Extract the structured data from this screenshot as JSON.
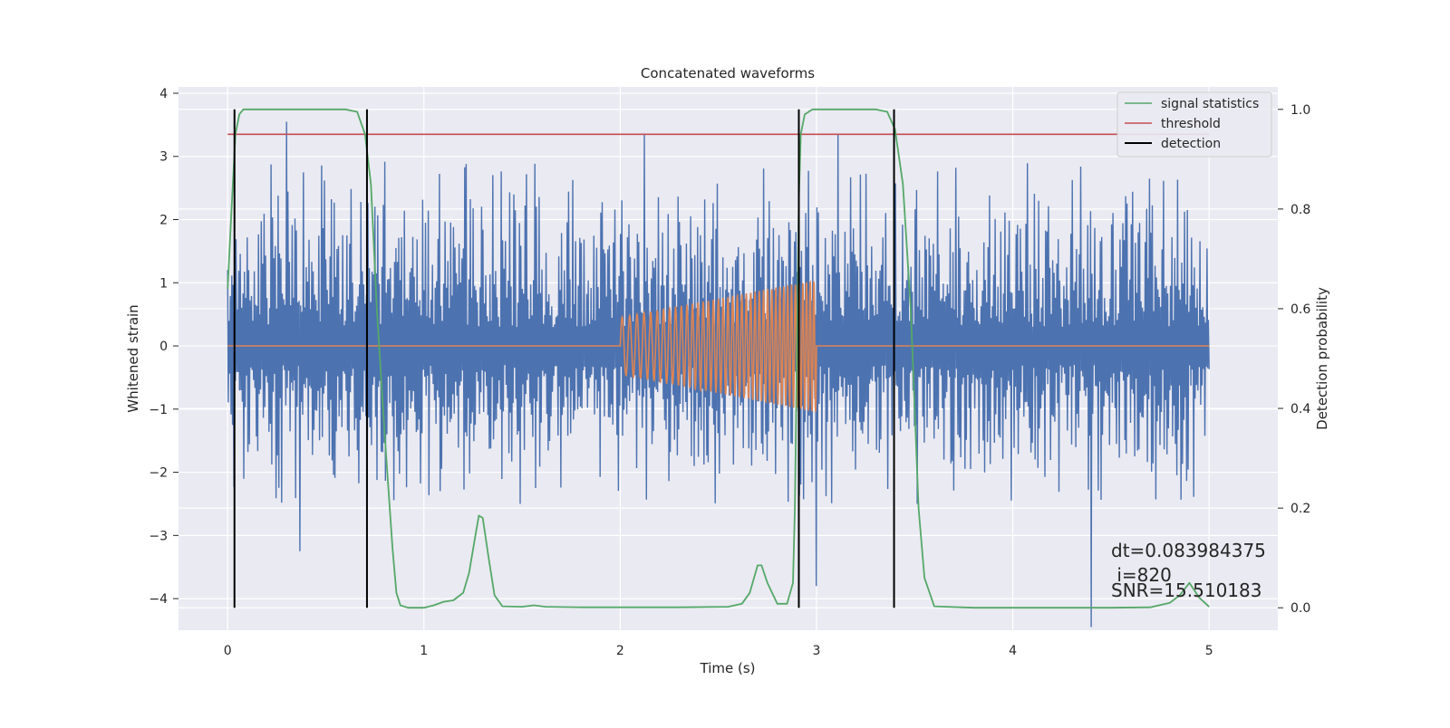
{
  "chart_data": {
    "type": "line",
    "title": "Concatenated waveforms",
    "xlabel": "Time (s)",
    "ylabel": "Whitened strain",
    "y2label": "Detection probability",
    "xlim": [
      -0.25,
      5.35
    ],
    "ylim": [
      -4.5,
      4.1
    ],
    "y2lim": [
      -0.045,
      1.045
    ],
    "xticks": [
      0,
      1,
      2,
      3,
      4,
      5
    ],
    "xtick_labels": [
      "0",
      "1",
      "2",
      "3",
      "4",
      "5"
    ],
    "yticks": [
      4,
      3,
      2,
      1,
      0,
      -1,
      -2,
      -3,
      -4
    ],
    "ytick_labels": [
      "4",
      "3",
      "2",
      "1",
      "0",
      "−1",
      "−2",
      "−3",
      "−4"
    ],
    "y2ticks": [
      1.0,
      0.8,
      0.6,
      0.4,
      0.2,
      0.0
    ],
    "y2tick_labels": [
      "1.0",
      "0.8",
      "0.6",
      "0.4",
      "0.2",
      "0.0"
    ],
    "grid": true,
    "legend_position": "top-right",
    "colors": {
      "strain": "#4c72b0",
      "template": "#dd8452",
      "signal": "#55a868",
      "threshold": "#c44e52",
      "detection": "#000000",
      "axes_bg": "#eaeaf2",
      "grid": "#ffffff"
    },
    "series": [
      {
        "name": "signal statistics",
        "axis": "right",
        "color": "#55a868",
        "x": [
          0.0,
          0.02,
          0.04,
          0.06,
          0.08,
          0.1,
          0.2,
          0.4,
          0.6,
          0.66,
          0.7,
          0.73,
          0.76,
          0.8,
          0.84,
          0.86,
          0.88,
          0.92,
          1.0,
          1.05,
          1.1,
          1.15,
          1.2,
          1.23,
          1.26,
          1.28,
          1.3,
          1.33,
          1.36,
          1.4,
          1.5,
          1.56,
          1.62,
          1.8,
          2.0,
          2.3,
          2.55,
          2.62,
          2.66,
          2.7,
          2.72,
          2.75,
          2.8,
          2.85,
          2.88,
          2.89,
          2.9,
          2.91,
          2.92,
          2.94,
          2.98,
          3.1,
          3.3,
          3.36,
          3.4,
          3.44,
          3.48,
          3.5,
          3.52,
          3.55,
          3.6,
          3.8,
          4.0,
          4.5,
          4.7,
          4.8,
          4.85,
          4.9,
          4.95,
          5.0
        ],
        "y": [
          0.64,
          0.8,
          0.95,
          0.99,
          1.0,
          1.0,
          1.0,
          1.0,
          1.0,
          0.995,
          0.95,
          0.85,
          0.6,
          0.35,
          0.12,
          0.03,
          0.005,
          0.0,
          0.0,
          0.005,
          0.012,
          0.015,
          0.03,
          0.07,
          0.14,
          0.185,
          0.18,
          0.1,
          0.025,
          0.003,
          0.002,
          0.005,
          0.002,
          0.001,
          0.001,
          0.001,
          0.002,
          0.008,
          0.03,
          0.085,
          0.085,
          0.05,
          0.008,
          0.008,
          0.05,
          0.2,
          0.5,
          0.82,
          0.95,
          0.99,
          1.0,
          1.0,
          1.0,
          0.995,
          0.96,
          0.85,
          0.6,
          0.4,
          0.2,
          0.06,
          0.003,
          0.0,
          0.0,
          0.0,
          0.001,
          0.01,
          0.025,
          0.05,
          0.02,
          0.002
        ]
      },
      {
        "name": "threshold",
        "axis": "right",
        "color": "#c44e52",
        "x": [
          0.0,
          5.0
        ],
        "y": [
          0.95,
          0.95
        ]
      },
      {
        "name": "detection",
        "axis": "right",
        "color": "#000000",
        "x": [
          0.035,
          0.71,
          2.91,
          3.395
        ],
        "y_range": [
          0.0,
          1.0
        ]
      }
    ],
    "strain": {
      "x_range": [
        0.0,
        5.0
      ],
      "samples": 1400,
      "noise_envelope": [
        -2.5,
        3.0
      ],
      "extremes": [
        {
          "x": 0.37,
          "y": -3.25
        },
        {
          "x": 0.3,
          "y": 3.55
        },
        {
          "x": 2.12,
          "y": 3.35
        },
        {
          "x": 3.11,
          "y": 3.35
        },
        {
          "x": 3.0,
          "y": -3.8
        },
        {
          "x": 4.4,
          "y": -4.45
        }
      ]
    },
    "template": {
      "x_range": [
        0.0,
        5.0
      ],
      "chirp_start": 2.0,
      "chirp_end": 3.0,
      "amp_start": 0.45,
      "amp_end": 1.05,
      "freq_start": 25,
      "freq_end": 55
    },
    "annotations": {
      "dt": "dt=0.083984375",
      "index": " i=820",
      "snr": "SNR=15.510183"
    },
    "legend": [
      {
        "label": "signal statistics",
        "color": "#55a868"
      },
      {
        "label": "threshold",
        "color": "#c44e52"
      },
      {
        "label": "detection",
        "color": "#000000"
      }
    ]
  }
}
